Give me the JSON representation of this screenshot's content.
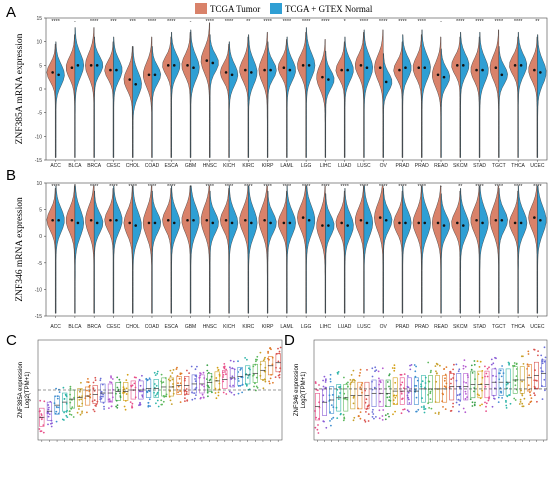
{
  "legend": {
    "tumor_label": "TCGA Tumor",
    "normal_label": "TCGA + GTEX Normal",
    "tumor_color": "#d9826a",
    "normal_color": "#2f9fd4"
  },
  "chart_data": [
    {
      "panel": "A",
      "type": "violin",
      "ylabel": "ZNF385A mRNA expression",
      "ylim": [
        -15,
        15
      ],
      "yticks": [
        15,
        10,
        5,
        0,
        -5,
        -10,
        -15
      ],
      "categories": [
        "ACC",
        "BLCA",
        "BRCA",
        "CESC",
        "CHOL",
        "COAD",
        "ESCA",
        "GBM",
        "HNSC",
        "KICH",
        "KIRC",
        "KIRP",
        "LAML",
        "LGG",
        "LIHC",
        "LUAD",
        "LUSC",
        "OV",
        "PRAD",
        "PRAD",
        "READ",
        "SKCM",
        "STAD",
        "TGCT",
        "THCA",
        "UCEC"
      ],
      "significance": [
        "****",
        "-",
        "****",
        "***",
        "***",
        "****",
        "****",
        "-",
        "****",
        "****",
        "**",
        "****",
        "****",
        "****",
        "****",
        "*",
        "****",
        "****",
        "****",
        "****",
        "-",
        "****",
        "****",
        "****",
        "****",
        "**"
      ],
      "series": [
        {
          "name": "TCGA Tumor",
          "medians": [
            3.5,
            4.5,
            5,
            4,
            2,
            3,
            5,
            5,
            6,
            3.5,
            4,
            4,
            4.5,
            5,
            2.5,
            4,
            5,
            4.5,
            4,
            4.5,
            3,
            5,
            4,
            4.5,
            5,
            4
          ]
        },
        {
          "name": "TCGA + GTEX Normal",
          "medians": [
            3,
            5,
            5,
            4,
            1,
            3,
            5,
            4.5,
            5.5,
            3,
            3.5,
            4,
            4,
            5,
            2,
            4,
            4.5,
            1.5,
            4.5,
            4.5,
            2.5,
            5,
            4,
            3,
            5,
            3.5
          ]
        }
      ]
    },
    {
      "panel": "B",
      "type": "violin",
      "ylabel": "ZNF346 mRNA expression",
      "ylim": [
        -15,
        10
      ],
      "yticks": [
        10,
        5,
        0,
        -5,
        -10,
        -15
      ],
      "categories": [
        "ACC",
        "BLCA",
        "BRCA",
        "CESC",
        "CHOL",
        "COAD",
        "ESCA",
        "GBM",
        "HNSC",
        "KICH",
        "KIRC",
        "KIRP",
        "LAML",
        "LGG",
        "LIHC",
        "LUAD",
        "LUSC",
        "OV",
        "PRAD",
        "PRAD",
        "READ",
        "SKCM",
        "STAD",
        "TGCT",
        "THCA",
        "UCEC"
      ],
      "significance": [
        "****",
        "*",
        "****",
        "****",
        "****",
        "****",
        "****",
        "-",
        "****",
        "****",
        "****",
        "****",
        "****",
        "****",
        "****",
        "****",
        "****",
        "****",
        "****",
        "****",
        "-",
        "**",
        "****",
        "****",
        "****",
        "****"
      ],
      "series": [
        {
          "name": "TCGA Tumor",
          "medians": [
            3,
            3,
            3,
            3,
            2.5,
            2.5,
            3,
            3,
            3,
            3,
            3,
            3,
            2.5,
            3.5,
            2,
            2.5,
            3,
            3.5,
            2.5,
            2.5,
            2.5,
            2.5,
            3,
            3,
            2.5,
            3.5
          ]
        },
        {
          "name": "TCGA + GTEX Normal",
          "medians": [
            3,
            2.5,
            2.5,
            3,
            2,
            2.5,
            2.5,
            3,
            2.5,
            2.5,
            2.5,
            2.5,
            2.5,
            3,
            2,
            2,
            2.5,
            3,
            2.5,
            2.5,
            2,
            2,
            2.5,
            3,
            2.5,
            3
          ]
        }
      ]
    },
    {
      "panel": "C",
      "type": "scatter",
      "ylabel": "ZNF385A expression\nLog2(TPM+1)",
      "groups": 32,
      "values_trend": [
        1.4,
        1.8,
        2.2,
        2.4,
        2.6,
        2.7,
        2.8,
        2.9,
        3.0,
        3.0,
        3.1,
        3.1,
        3.2,
        3.2,
        3.3,
        3.3,
        3.4,
        3.4,
        3.5,
        3.5,
        3.6,
        3.6,
        3.7,
        3.8,
        3.9,
        4.0,
        4.1,
        4.2,
        4.3,
        4.5,
        4.8,
        5.0
      ],
      "reference_line": 3.2
    },
    {
      "panel": "D",
      "type": "scatter",
      "ylabel": "ZNF346 expression\nLog2(TPM+1)",
      "groups": 33,
      "values_trend": [
        4.6,
        4.8,
        4.9,
        5.0,
        5.0,
        5.1,
        5.1,
        5.1,
        5.2,
        5.2,
        5.2,
        5.3,
        5.3,
        5.3,
        5.3,
        5.4,
        5.4,
        5.4,
        5.4,
        5.5,
        5.5,
        5.5,
        5.6,
        5.6,
        5.6,
        5.7,
        5.7,
        5.7,
        5.8,
        5.8,
        5.9,
        6.0,
        6.1
      ],
      "reference_line": 5.4
    }
  ]
}
